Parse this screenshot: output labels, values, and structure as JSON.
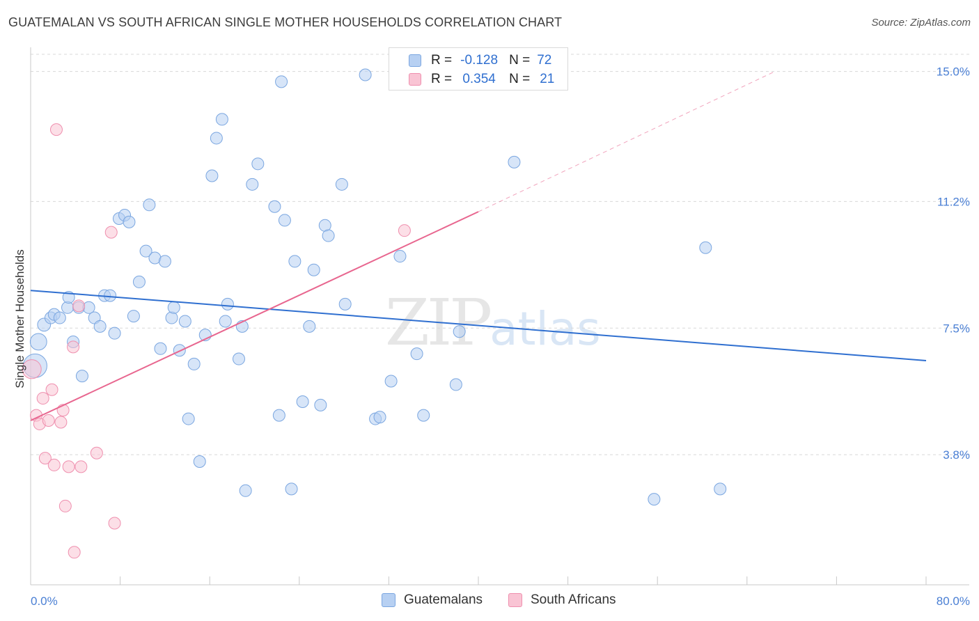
{
  "title": "GUATEMALAN VS SOUTH AFRICAN SINGLE MOTHER HOUSEHOLDS CORRELATION CHART",
  "source": "Source: ZipAtlas.com",
  "watermark": {
    "zip": "ZIP",
    "atlas": "atlas"
  },
  "legend_top": {
    "row1": {
      "r_label": "R =",
      "r_value": "-0.128",
      "n_label": "N =",
      "n_value": "72"
    },
    "row2": {
      "r_label": "R =",
      "r_value": "0.354",
      "n_label": "N =",
      "n_value": "21"
    }
  },
  "legend_bottom": {
    "s1": "Guatemalans",
    "s2": "South Africans"
  },
  "colors": {
    "blue_fill": "#b7d0f2",
    "blue_stroke": "#7aa6e0",
    "blue_line": "#2f6fd0",
    "pink_fill": "#f9c4d4",
    "pink_stroke": "#ef8fae",
    "pink_line": "#e8668f",
    "grid": "#d8d8d8",
    "tick_text": "#4a7fd4"
  },
  "chart_data": {
    "type": "scatter",
    "xlabel": "",
    "ylabel": "Single Mother Households",
    "xlim": [
      0,
      80
    ],
    "ylim": [
      0,
      15.5
    ],
    "x_tick_labels": [
      {
        "value": 0,
        "label": "0.0%"
      },
      {
        "value": 80,
        "label": "80.0%"
      }
    ],
    "y_ticks": [
      {
        "value": 3.8,
        "label": "3.8%"
      },
      {
        "value": 7.5,
        "label": "7.5%"
      },
      {
        "value": 11.2,
        "label": "11.2%"
      },
      {
        "value": 15.0,
        "label": "15.0%"
      }
    ],
    "grid": "horizontal dashed",
    "legend_position": "top-center",
    "series": [
      {
        "name": "Guatemalans",
        "r": -0.128,
        "n": 72,
        "trend": {
          "x0": 0,
          "y0": 8.6,
          "x1": 80,
          "y1": 6.55
        },
        "points": [
          [
            0.4,
            6.4,
            2
          ],
          [
            0.7,
            7.1,
            1.4
          ],
          [
            1.2,
            7.6,
            1.1
          ],
          [
            1.8,
            7.8,
            1
          ],
          [
            2.1,
            7.9,
            1
          ],
          [
            2.6,
            7.8,
            1
          ],
          [
            3.3,
            8.1,
            1
          ],
          [
            3.4,
            8.4,
            1
          ],
          [
            3.8,
            7.1,
            1
          ],
          [
            4.3,
            8.1,
            1
          ],
          [
            4.6,
            6.1,
            1
          ],
          [
            5.2,
            8.1,
            1
          ],
          [
            5.7,
            7.8,
            1
          ],
          [
            6.2,
            7.55,
            1
          ],
          [
            6.6,
            8.45,
            1
          ],
          [
            7.1,
            8.45,
            1
          ],
          [
            7.5,
            7.35,
            1
          ],
          [
            7.9,
            10.7,
            1
          ],
          [
            8.4,
            10.8,
            1
          ],
          [
            8.8,
            10.6,
            1
          ],
          [
            9.2,
            7.85,
            1
          ],
          [
            9.7,
            8.85,
            1
          ],
          [
            10.3,
            9.75,
            1
          ],
          [
            10.6,
            11.1,
            1
          ],
          [
            11.1,
            9.55,
            1
          ],
          [
            11.6,
            6.9,
            1
          ],
          [
            12.0,
            9.45,
            1
          ],
          [
            12.6,
            7.8,
            1
          ],
          [
            12.8,
            8.1,
            1
          ],
          [
            13.3,
            6.85,
            1
          ],
          [
            13.8,
            7.7,
            1
          ],
          [
            14.1,
            4.85,
            1
          ],
          [
            14.6,
            6.45,
            1
          ],
          [
            15.1,
            3.6,
            1
          ],
          [
            15.6,
            7.3,
            1
          ],
          [
            16.2,
            11.95,
            1
          ],
          [
            16.6,
            13.05,
            1
          ],
          [
            17.1,
            13.6,
            1
          ],
          [
            17.4,
            7.7,
            1
          ],
          [
            17.6,
            8.2,
            1
          ],
          [
            18.6,
            6.6,
            1
          ],
          [
            18.9,
            7.55,
            1
          ],
          [
            19.2,
            2.75,
            1
          ],
          [
            19.8,
            11.7,
            1
          ],
          [
            20.3,
            12.3,
            1
          ],
          [
            21.8,
            11.05,
            1
          ],
          [
            22.2,
            4.95,
            1
          ],
          [
            22.4,
            14.7,
            1
          ],
          [
            22.7,
            10.65,
            1
          ],
          [
            23.3,
            2.8,
            1
          ],
          [
            23.6,
            9.45,
            1
          ],
          [
            24.3,
            5.35,
            1
          ],
          [
            24.9,
            7.55,
            1
          ],
          [
            25.3,
            9.2,
            1
          ],
          [
            25.9,
            5.25,
            1
          ],
          [
            26.3,
            10.5,
            1
          ],
          [
            26.6,
            10.2,
            1
          ],
          [
            27.8,
            11.7,
            1
          ],
          [
            28.1,
            8.2,
            1
          ],
          [
            29.9,
            14.9,
            1
          ],
          [
            30.8,
            4.85,
            1
          ],
          [
            31.2,
            4.9,
            1
          ],
          [
            32.2,
            5.95,
            1
          ],
          [
            33.0,
            9.6,
            1
          ],
          [
            34.5,
            6.75,
            1
          ],
          [
            35.1,
            4.95,
            1
          ],
          [
            38.0,
            5.85,
            1
          ],
          [
            38.3,
            7.4,
            1
          ],
          [
            43.2,
            12.35,
            1
          ],
          [
            55.7,
            2.5,
            1
          ],
          [
            60.3,
            9.85,
            1
          ],
          [
            61.6,
            2.8,
            1
          ]
        ]
      },
      {
        "name": "South Africans",
        "r": 0.354,
        "n": 21,
        "trend": {
          "x0": 0,
          "y0": 4.8,
          "x1": 40,
          "y1": 10.9,
          "dashed_to": {
            "x": 66.5,
            "y": 15.0
          }
        },
        "points": [
          [
            0.1,
            6.3,
            1.6
          ],
          [
            0.5,
            4.95,
            1
          ],
          [
            0.8,
            4.7,
            1
          ],
          [
            1.1,
            5.45,
            1
          ],
          [
            1.3,
            3.7,
            1
          ],
          [
            1.6,
            4.8,
            1
          ],
          [
            1.9,
            5.7,
            1
          ],
          [
            2.1,
            3.5,
            1
          ],
          [
            2.3,
            13.3,
            1
          ],
          [
            2.7,
            4.75,
            1
          ],
          [
            2.9,
            5.1,
            1
          ],
          [
            3.1,
            2.3,
            1
          ],
          [
            3.4,
            3.45,
            1
          ],
          [
            3.8,
            6.95,
            1
          ],
          [
            3.9,
            0.95,
            1
          ],
          [
            4.3,
            8.15,
            1
          ],
          [
            4.5,
            3.45,
            1
          ],
          [
            5.9,
            3.85,
            1
          ],
          [
            7.2,
            10.3,
            1
          ],
          [
            7.5,
            1.8,
            1
          ],
          [
            33.4,
            10.35,
            1
          ]
        ]
      }
    ]
  }
}
